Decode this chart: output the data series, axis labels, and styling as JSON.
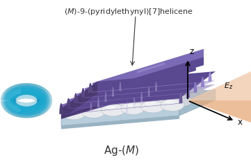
{
  "title_top": "(M)-9-(pyridylethynyl)[7]helicene",
  "bg_color": "#ffffff",
  "axis_z_label": "z",
  "axis_x_label": "x",
  "ridge_dark": "#5a4890",
  "ridge_mid": "#7b6ab5",
  "ridge_light": "#9d8fd0",
  "ridge_side": "#4a3870",
  "base_top": "#c8dae8",
  "base_side": "#b0c8d8",
  "base_bottom": "#a8bece",
  "silver_color": "#d0d4dc",
  "silver_light": "#e8eaee",
  "silver_shadow": "#b8bcc4",
  "cone_color": "#e8a878",
  "cone_light": "#f0c8a8",
  "blue_main": "#1aa8d0",
  "blue_light": "#70d0e8",
  "blue_dark": "#0888b0",
  "layer_purple_thin": "#9080c0",
  "layer_lavender": "#b8b0d8"
}
